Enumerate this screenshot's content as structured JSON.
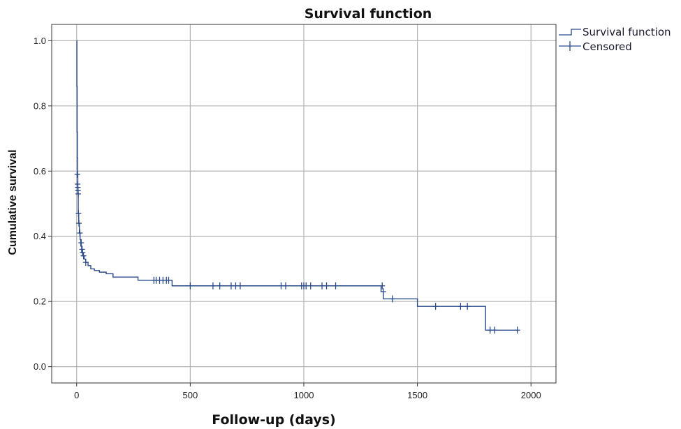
{
  "chart_data": {
    "type": "line",
    "step": true,
    "title": "Survival function",
    "xlabel": "Follow-up (days)",
    "ylabel": "Cumulative survival",
    "xlim": [
      -110,
      2110
    ],
    "ylim": [
      -0.05,
      1.05
    ],
    "xticks": [
      0,
      500,
      1000,
      1500,
      2000
    ],
    "xtick_labels": [
      "0",
      "500",
      "1000",
      "1500",
      "2000"
    ],
    "yticks": [
      0.0,
      0.2,
      0.4,
      0.6,
      0.8,
      1.0
    ],
    "ytick_labels": [
      "0.0",
      "0.2",
      "0.4",
      "0.6",
      "0.8",
      "1.0"
    ],
    "grid": true,
    "legend_position": "top-right",
    "legend": [
      "Survival function",
      "Censored"
    ],
    "series_color": "#2b4a8a",
    "grid_color": "#b3b3b3",
    "survival": {
      "x": [
        0,
        1,
        2,
        3,
        4,
        5,
        7,
        9,
        12,
        15,
        18,
        22,
        27,
        33,
        40,
        50,
        62,
        78,
        100,
        130,
        160,
        270,
        420,
        1340,
        1350,
        1500,
        1800,
        1940
      ],
      "y": [
        1.0,
        0.86,
        0.72,
        0.64,
        0.59,
        0.53,
        0.47,
        0.44,
        0.41,
        0.39,
        0.37,
        0.35,
        0.34,
        0.33,
        0.32,
        0.31,
        0.3,
        0.295,
        0.29,
        0.285,
        0.275,
        0.265,
        0.248,
        0.23,
        0.208,
        0.185,
        0.112,
        0.112
      ]
    },
    "censored": {
      "x": [
        3,
        4,
        5,
        6,
        7,
        8,
        10,
        14,
        20,
        24,
        26,
        30,
        40,
        340,
        350,
        365,
        380,
        395,
        405,
        500,
        600,
        630,
        680,
        700,
        720,
        900,
        920,
        990,
        1000,
        1010,
        1030,
        1080,
        1100,
        1140,
        1345,
        1350,
        1390,
        1580,
        1690,
        1720,
        1820,
        1840,
        1940
      ],
      "y": [
        0.59,
        0.56,
        0.55,
        0.54,
        0.53,
        0.47,
        0.44,
        0.41,
        0.38,
        0.36,
        0.35,
        0.34,
        0.32,
        0.265,
        0.265,
        0.265,
        0.265,
        0.265,
        0.265,
        0.248,
        0.248,
        0.248,
        0.248,
        0.248,
        0.248,
        0.248,
        0.248,
        0.248,
        0.248,
        0.248,
        0.248,
        0.248,
        0.248,
        0.248,
        0.248,
        0.23,
        0.208,
        0.185,
        0.185,
        0.185,
        0.112,
        0.112,
        0.112
      ]
    }
  }
}
